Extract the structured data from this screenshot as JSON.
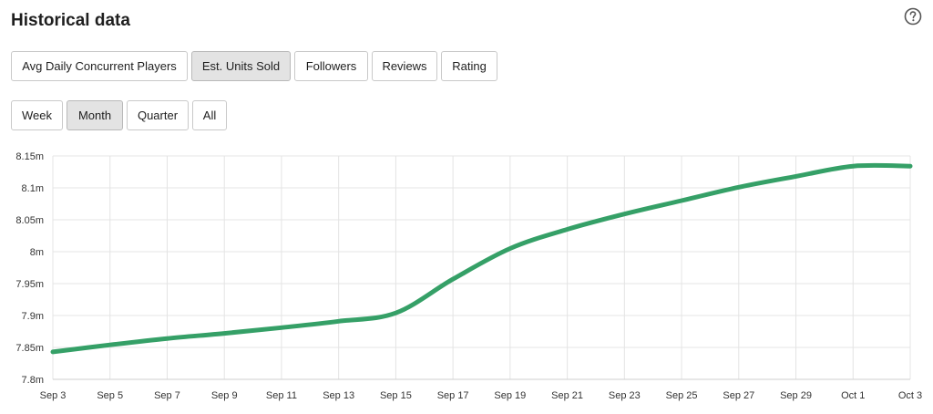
{
  "header": {
    "title": "Historical data",
    "help_icon": "question-circle-icon"
  },
  "metric_tabs": [
    {
      "label": "Avg Daily Concurrent Players",
      "active": false
    },
    {
      "label": "Est. Units Sold",
      "active": true
    },
    {
      "label": "Followers",
      "active": false
    },
    {
      "label": "Reviews",
      "active": false
    },
    {
      "label": "Rating",
      "active": false
    }
  ],
  "range_tabs": [
    {
      "label": "Week",
      "active": false
    },
    {
      "label": "Month",
      "active": true
    },
    {
      "label": "Quarter",
      "active": false
    },
    {
      "label": "All",
      "active": false
    }
  ],
  "colors": {
    "line": "#35a067",
    "grid": "#e4e4e4",
    "active_button": "#e3e3e3"
  },
  "chart_data": {
    "type": "line",
    "title": "",
    "xlabel": "",
    "ylabel": "",
    "grid": true,
    "ylim": [
      7.8,
      8.15
    ],
    "x_ticks": [
      "Sep 3",
      "Sep 5",
      "Sep 7",
      "Sep 9",
      "Sep 11",
      "Sep 13",
      "Sep 15",
      "Sep 17",
      "Sep 19",
      "Sep 21",
      "Sep 23",
      "Sep 25",
      "Sep 27",
      "Sep 29",
      "Oct 1",
      "Oct 3"
    ],
    "y_ticks": [
      {
        "value": 7.8,
        "label": "7.8m"
      },
      {
        "value": 7.85,
        "label": "7.85m"
      },
      {
        "value": 7.9,
        "label": "7.9m"
      },
      {
        "value": 7.95,
        "label": "7.95m"
      },
      {
        "value": 8.0,
        "label": "8m"
      },
      {
        "value": 8.05,
        "label": "8.05m"
      },
      {
        "value": 8.1,
        "label": "8.1m"
      },
      {
        "value": 8.15,
        "label": "8.15m"
      }
    ],
    "series": [
      {
        "unit": "million units",
        "points": [
          {
            "x": "Sep 3",
            "y": 7.843
          },
          {
            "x": "Sep 5",
            "y": 7.854
          },
          {
            "x": "Sep 7",
            "y": 7.864
          },
          {
            "x": "Sep 9",
            "y": 7.872
          },
          {
            "x": "Sep 11",
            "y": 7.881
          },
          {
            "x": "Sep 13",
            "y": 7.891
          },
          {
            "x": "Sep 15",
            "y": 7.904
          },
          {
            "x": "Sep 17",
            "y": 7.957
          },
          {
            "x": "Sep 19",
            "y": 8.005
          },
          {
            "x": "Sep 21",
            "y": 8.035
          },
          {
            "x": "Sep 23",
            "y": 8.059
          },
          {
            "x": "Sep 25",
            "y": 8.08
          },
          {
            "x": "Sep 27",
            "y": 8.101
          },
          {
            "x": "Sep 29",
            "y": 8.118
          },
          {
            "x": "Oct 1",
            "y": 8.134
          },
          {
            "x": "Oct 3",
            "y": 8.134
          }
        ]
      }
    ]
  }
}
